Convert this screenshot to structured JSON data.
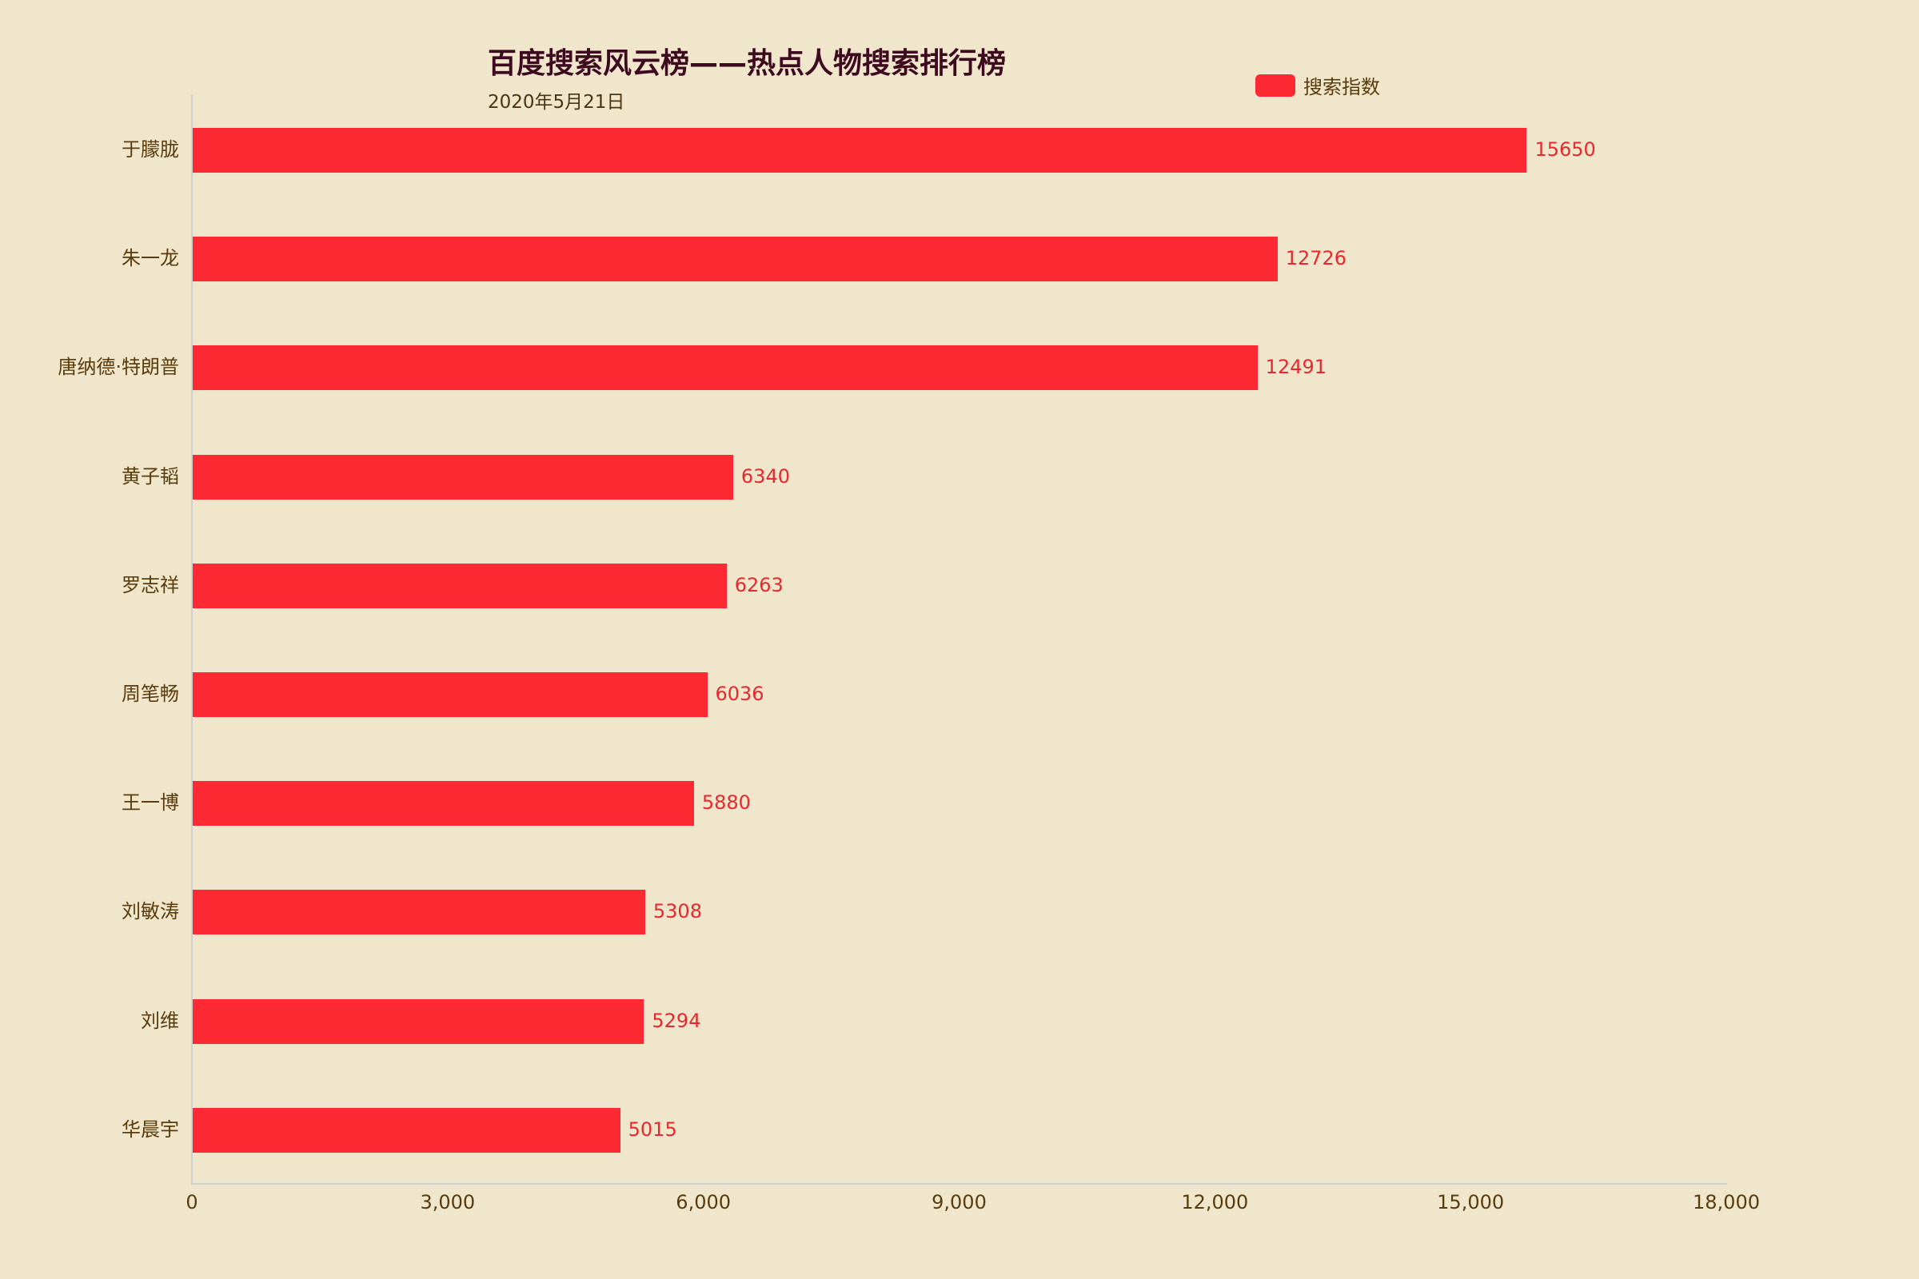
{
  "header": {
    "title": "百度搜索风云榜——热点人物搜索排行榜",
    "subtitle": "2020年5月21日"
  },
  "legend": {
    "label": "搜索指数",
    "color": "#fd2a33"
  },
  "chart_data": {
    "type": "bar",
    "orientation": "horizontal",
    "title": "百度搜索风云榜——热点人物搜索排行榜",
    "subtitle": "2020年5月21日",
    "xlabel": "",
    "ylabel": "",
    "xlim": [
      0,
      18000
    ],
    "x_ticks": [
      "0",
      "3,000",
      "6,000",
      "9,000",
      "12,000",
      "15,000",
      "18,000"
    ],
    "categories": [
      "于朦胧",
      "朱一龙",
      "唐纳德·特朗普",
      "黄子韬",
      "罗志祥",
      "周笔畅",
      "王一博",
      "刘敏涛",
      "刘维",
      "华晨宇"
    ],
    "series": [
      {
        "name": "搜索指数",
        "color": "#fd2a33",
        "values": [
          15650,
          12726,
          12491,
          6340,
          6263,
          6036,
          5880,
          5308,
          5294,
          5015
        ]
      }
    ],
    "legend_position": "top-right",
    "grid": false,
    "data_labels": true
  }
}
